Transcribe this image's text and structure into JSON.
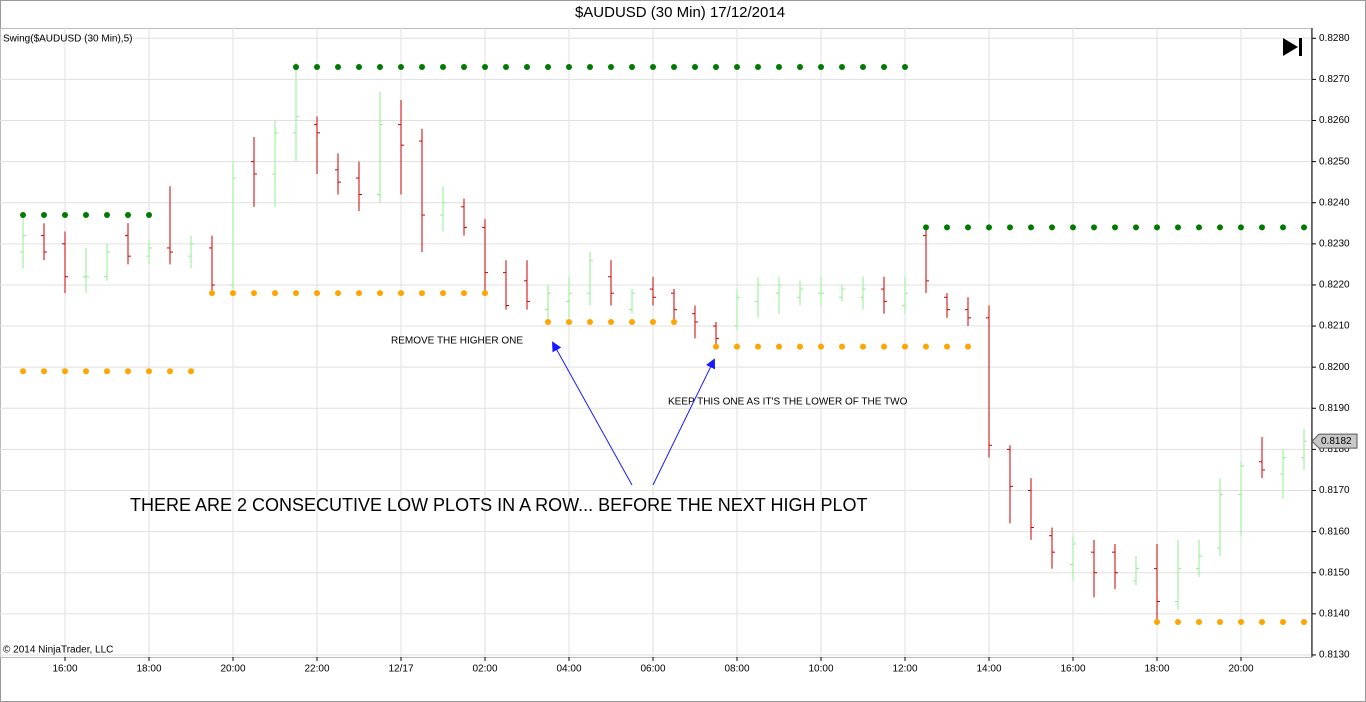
{
  "chart_data": {
    "type": "ohlc",
    "title": "$AUDUSD (30 Min)  17/12/2014",
    "indicator_label": "Swing($AUDUSD (30 Min),5)",
    "copyright": "© 2014 NinjaTrader, LLC",
    "annotations": [
      "REMOVE THE HIGHER ONE",
      "KEEP THIS ONE AS IT'S THE LOWER OF THE TWO",
      "THERE ARE 2 CONSECUTIVE LOW PLOTS IN A ROW... BEFORE THE NEXT HIGH PLOT"
    ],
    "categories": [
      null,
      null,
      "16:00",
      null,
      null,
      null,
      "18:00",
      null,
      null,
      null,
      "20:00",
      null,
      null,
      null,
      "22:00",
      null,
      null,
      null,
      "12/17",
      null,
      null,
      null,
      "02:00",
      null,
      null,
      null,
      "04:00",
      null,
      null,
      null,
      "06:00",
      null,
      null,
      null,
      "08:00",
      null,
      null,
      null,
      "10:00",
      null,
      null,
      null,
      "12:00",
      null,
      null,
      null,
      "14:00",
      null,
      null,
      null,
      "16:00",
      null,
      null,
      null,
      "18:00",
      null,
      null,
      null,
      "20:00",
      null,
      null,
      null
    ],
    "open": [
      0.8228,
      0.8232,
      0.823,
      0.8222,
      0.8222,
      0.8232,
      0.8227,
      0.8229,
      0.8227,
      0.8229,
      0.822,
      0.825,
      0.8247,
      0.8257,
      0.8259,
      0.8248,
      0.8246,
      0.8242,
      0.8259,
      0.8255,
      0.8237,
      0.8239,
      0.8234,
      0.8223,
      0.8221,
      0.8214,
      0.8216,
      0.8218,
      0.8222,
      0.8214,
      0.8219,
      0.8218,
      0.8213,
      0.821,
      0.821,
      0.8216,
      0.8218,
      0.8217,
      0.8218,
      0.8217,
      0.8217,
      0.8219,
      0.8215,
      0.8232,
      0.8217,
      0.8214,
      0.8212,
      0.818,
      0.817,
      0.8159,
      0.8152,
      0.8155,
      0.8155,
      0.8148,
      0.8151,
      0.8143,
      0.8151,
      0.8156,
      0.8169,
      0.8177,
      0.8174,
      0.8178
    ],
    "high": [
      0.8237,
      0.8235,
      0.8233,
      0.8229,
      0.823,
      0.8235,
      0.8231,
      0.8244,
      0.8232,
      0.8232,
      0.825,
      0.8256,
      0.826,
      0.8274,
      0.8261,
      0.8252,
      0.825,
      0.8267,
      0.8265,
      0.8258,
      0.8244,
      0.8241,
      0.8236,
      0.8226,
      0.8226,
      0.822,
      0.8222,
      0.8228,
      0.8226,
      0.8219,
      0.8222,
      0.8219,
      0.8215,
      0.8211,
      0.8219,
      0.8222,
      0.8222,
      0.8221,
      0.8222,
      0.822,
      0.8222,
      0.8222,
      0.8222,
      0.8234,
      0.8218,
      0.8217,
      0.8215,
      0.8181,
      0.8173,
      0.8161,
      0.8159,
      0.8158,
      0.8157,
      0.8154,
      0.8157,
      0.8158,
      0.8158,
      0.8173,
      0.8177,
      0.8183,
      0.818,
      0.8185
    ],
    "low": [
      0.8224,
      0.8226,
      0.8218,
      0.8218,
      0.8221,
      0.8225,
      0.8225,
      0.8225,
      0.8224,
      0.8218,
      0.8219,
      0.8239,
      0.8239,
      0.825,
      0.8247,
      0.8242,
      0.8238,
      0.824,
      0.8242,
      0.8228,
      0.8233,
      0.8232,
      0.8218,
      0.8214,
      0.8214,
      0.8211,
      0.8212,
      0.8215,
      0.8215,
      0.8213,
      0.8215,
      0.8211,
      0.8207,
      0.8205,
      0.8209,
      0.8212,
      0.8213,
      0.8215,
      0.8215,
      0.8216,
      0.8214,
      0.8213,
      0.8213,
      0.8218,
      0.8212,
      0.821,
      0.8178,
      0.8162,
      0.8158,
      0.8151,
      0.8148,
      0.8144,
      0.8146,
      0.8147,
      0.8138,
      0.8141,
      0.8149,
      0.8154,
      0.8159,
      0.8173,
      0.8168,
      0.8175
    ],
    "close": [
      0.8232,
      0.8228,
      0.8222,
      0.8222,
      0.8228,
      0.8227,
      0.8229,
      0.8228,
      0.823,
      0.822,
      0.8246,
      0.8247,
      0.8257,
      0.8261,
      0.8257,
      0.8245,
      0.8242,
      0.8259,
      0.8254,
      0.8237,
      0.824,
      0.8234,
      0.8223,
      0.8215,
      0.8216,
      0.8218,
      0.8218,
      0.8226,
      0.8218,
      0.8218,
      0.8217,
      0.8214,
      0.8211,
      0.8207,
      0.8217,
      0.822,
      0.822,
      0.8219,
      0.8218,
      0.8219,
      0.8219,
      0.8216,
      0.8218,
      0.8221,
      0.8214,
      0.8212,
      0.8181,
      0.8171,
      0.8161,
      0.8155,
      0.8157,
      0.815,
      0.815,
      0.8151,
      0.8143,
      0.8151,
      0.8154,
      0.8169,
      0.8176,
      0.8175,
      0.8178,
      0.8182
    ],
    "up_color": "#90ee90",
    "down_color": "#cc0000",
    "swing_high": {
      "color": "#007a00",
      "values": [
        0.8237,
        0.8237,
        0.8237,
        0.8237,
        0.8237,
        0.8237,
        0.8237,
        null,
        null,
        null,
        null,
        null,
        null,
        0.8273,
        0.8273,
        0.8273,
        0.8273,
        0.8273,
        0.8273,
        0.8273,
        0.8273,
        0.8273,
        0.8273,
        0.8273,
        0.8273,
        0.8273,
        0.8273,
        0.8273,
        0.8273,
        0.8273,
        0.8273,
        0.8273,
        0.8273,
        0.8273,
        0.8273,
        0.8273,
        0.8273,
        0.8273,
        0.8273,
        0.8273,
        0.8273,
        0.8273,
        0.8273,
        0.8234,
        0.8234,
        0.8234,
        0.8234,
        0.8234,
        0.8234,
        0.8234,
        0.8234,
        0.8234,
        0.8234,
        0.8234,
        0.8234,
        0.8234,
        0.8234,
        0.8234,
        0.8234,
        0.8234,
        0.8234,
        0.8234
      ]
    },
    "swing_low": {
      "color": "#ffa500",
      "values": [
        0.8199,
        0.8199,
        0.8199,
        0.8199,
        0.8199,
        0.8199,
        0.8199,
        0.8199,
        0.8199,
        0.8218,
        0.8218,
        0.8218,
        0.8218,
        0.8218,
        0.8218,
        0.8218,
        0.8218,
        0.8218,
        0.8218,
        0.8218,
        0.8218,
        0.8218,
        0.8218,
        null,
        null,
        0.8211,
        0.8211,
        0.8211,
        0.8211,
        0.8211,
        0.8211,
        0.8211,
        null,
        0.8205,
        0.8205,
        0.8205,
        0.8205,
        0.8205,
        0.8205,
        0.8205,
        0.8205,
        0.8205,
        0.8205,
        0.8205,
        0.8205,
        0.8205,
        null,
        null,
        null,
        null,
        null,
        null,
        null,
        null,
        0.8138,
        0.8138,
        0.8138,
        0.8138,
        0.8138,
        0.8138,
        0.8138,
        0.8138
      ]
    },
    "last_price": {
      "value": 0.8182,
      "label": "0.8182"
    },
    "ylim": [
      0.81295,
      0.82825
    ],
    "yticks": [
      {
        "value": 0.813,
        "label": "0.8130"
      },
      {
        "value": 0.814,
        "label": "0.8140"
      },
      {
        "value": 0.815,
        "label": "0.8150"
      },
      {
        "value": 0.816,
        "label": "0.8160"
      },
      {
        "value": 0.817,
        "label": "0.8170"
      },
      {
        "value": 0.818,
        "label": "0.8180"
      },
      {
        "value": 0.819,
        "label": "0.8190"
      },
      {
        "value": 0.82,
        "label": "0.8200"
      },
      {
        "value": 0.821,
        "label": "0.8210"
      },
      {
        "value": 0.822,
        "label": "0.8220"
      },
      {
        "value": 0.823,
        "label": "0.8230"
      },
      {
        "value": 0.824,
        "label": "0.8240"
      },
      {
        "value": 0.825,
        "label": "0.8250"
      },
      {
        "value": 0.826,
        "label": "0.8260"
      },
      {
        "value": 0.827,
        "label": "0.8270"
      },
      {
        "value": 0.828,
        "label": "0.8280"
      }
    ],
    "grid": true
  }
}
